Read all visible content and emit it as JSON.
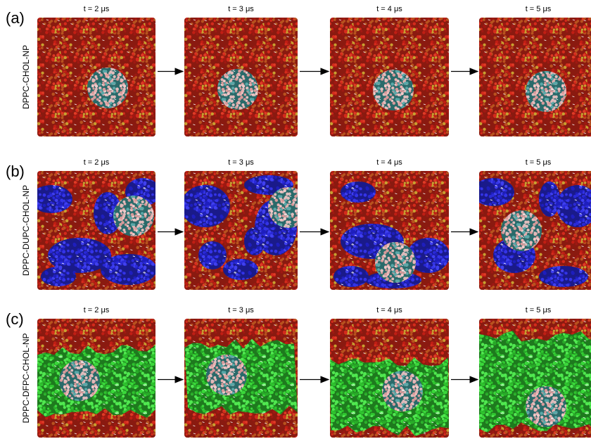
{
  "rows": [
    {
      "label": "(a)",
      "system": "DPPC-CHOL-NP",
      "times": [
        "t = 2 μs",
        "t = 3 μs",
        "t = 4 μs",
        "t = 5 μs"
      ]
    },
    {
      "label": "(b)",
      "system": "DPPC-DUPC-CHOL-NP",
      "times": [
        "t = 2 μs",
        "t = 3 μs",
        "t = 4 μs",
        "t = 5 μs"
      ]
    },
    {
      "label": "(c)",
      "system": "DPPC-DFPC-CHOL-NP",
      "times": [
        "t = 2 μs",
        "t = 3 μs",
        "t = 4 μs",
        "t = 5 μs"
      ]
    }
  ]
}
